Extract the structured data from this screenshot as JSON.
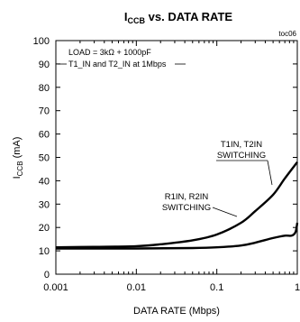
{
  "chart_data": {
    "type": "line",
    "title_main": "I",
    "title_sub": "CCB",
    "title_rest": " vs. DATA RATE",
    "tag": "toc06",
    "xlabel": "DATA RATE (Mbps)",
    "ylabel_main": "I",
    "ylabel_sub": "CCB",
    "ylabel_rest": " (mA)",
    "xscale": "log",
    "xlim": [
      0.001,
      1
    ],
    "ylim": [
      0,
      100
    ],
    "xticks": [
      0.001,
      0.01,
      0.1,
      1
    ],
    "xtick_labels": [
      "0.001",
      "0.01",
      "0.1",
      "1"
    ],
    "yticks": [
      0,
      10,
      20,
      30,
      40,
      50,
      60,
      70,
      80,
      90,
      100
    ],
    "ytick_labels": [
      "0",
      "10",
      "20",
      "30",
      "40",
      "50",
      "60",
      "70",
      "80",
      "90",
      "100"
    ],
    "grid": false,
    "note_lines": [
      "LOAD = 3kΩ + 1000pF",
      "T1_IN and T2_IN at 1Mbps"
    ],
    "series": [
      {
        "name": "T1IN, T2IN SWITCHING",
        "label_lines": [
          "T1IN, T2IN",
          "SWITCHING"
        ],
        "x": [
          0.001,
          0.003,
          0.01,
          0.02,
          0.05,
          0.1,
          0.2,
          0.3,
          0.5,
          0.7,
          1.0
        ],
        "y": [
          11.5,
          11.7,
          12.0,
          12.8,
          14.5,
          17.0,
          22.0,
          27.0,
          34.0,
          41.0,
          48.0
        ]
      },
      {
        "name": "R1IN, R2IN SWITCHING",
        "label_lines": [
          "R1IN, R2IN",
          "SWITCHING"
        ],
        "x": [
          0.001,
          0.01,
          0.05,
          0.1,
          0.2,
          0.3,
          0.5,
          0.7,
          0.85,
          0.95,
          1.0
        ],
        "y": [
          11.0,
          11.0,
          11.2,
          11.5,
          12.3,
          13.5,
          15.5,
          16.5,
          16.5,
          18.0,
          22.0
        ]
      }
    ]
  }
}
